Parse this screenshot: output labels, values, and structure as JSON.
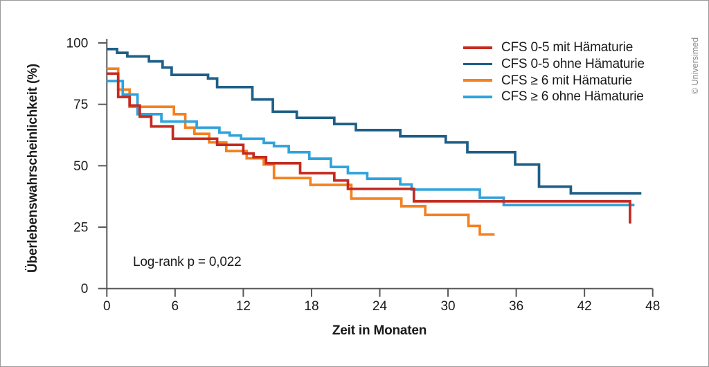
{
  "frame": {
    "copyright": "© Universimed",
    "background": "#ffffff",
    "border_color": "#9a9a9a"
  },
  "chart_data": {
    "type": "line",
    "subtype": "kaplan-meier-step",
    "title": "",
    "xlabel": "Zeit in Monaten",
    "ylabel": "Überlebenswahrscheinlichkeit (%)",
    "annotation": "Log-rank p = 0,022",
    "xlim": [
      0,
      48
    ],
    "ylim": [
      0,
      100
    ],
    "x_ticks": [
      0,
      6,
      12,
      18,
      24,
      30,
      36,
      42,
      48
    ],
    "y_ticks": [
      0,
      25,
      50,
      75,
      100
    ],
    "grid": false,
    "legend_position": "top-right",
    "axis_color": "#57585a",
    "text_color": "#1a1a1a",
    "series": [
      {
        "name": "CFS 0-5 mit Hämaturie",
        "color": "#c52a20",
        "steps": [
          [
            0,
            87.5
          ],
          [
            1,
            78
          ],
          [
            2,
            74.5
          ],
          [
            2.9,
            70
          ],
          [
            3.9,
            66
          ],
          [
            5.8,
            61
          ],
          [
            9.7,
            58.5
          ],
          [
            12,
            55
          ],
          [
            12.9,
            53.5
          ],
          [
            14,
            51
          ],
          [
            17,
            47
          ],
          [
            20,
            44
          ],
          [
            21.2,
            40.6
          ],
          [
            27,
            35.5
          ],
          [
            46,
            26.5
          ]
        ]
      },
      {
        "name": "CFS 0-5 ohne Hämaturie",
        "color": "#1d5f87",
        "steps": [
          [
            0,
            97.5
          ],
          [
            0.9,
            96
          ],
          [
            1.8,
            94.5
          ],
          [
            3.7,
            92.5
          ],
          [
            4.9,
            90
          ],
          [
            5.7,
            87
          ],
          [
            8.9,
            85.5
          ],
          [
            9.7,
            82
          ],
          [
            12.8,
            77
          ],
          [
            14.6,
            72
          ],
          [
            16.7,
            69.5
          ],
          [
            20,
            67
          ],
          [
            21.9,
            64.5
          ],
          [
            25.8,
            62
          ],
          [
            29.8,
            59.5
          ],
          [
            31.7,
            55.5
          ],
          [
            35.9,
            50.5
          ],
          [
            38,
            41.5
          ],
          [
            40.8,
            38.8
          ],
          [
            47,
            38.8
          ]
        ]
      },
      {
        "name": "CFS ≥ 6 mit Hämaturie",
        "color": "#f48120",
        "steps": [
          [
            0,
            89.5
          ],
          [
            1,
            81
          ],
          [
            2,
            74
          ],
          [
            5.9,
            71
          ],
          [
            6.9,
            65.5
          ],
          [
            7.7,
            63
          ],
          [
            9,
            59.5
          ],
          [
            10.5,
            56
          ],
          [
            12.3,
            53
          ],
          [
            13.8,
            50.5
          ],
          [
            14.7,
            45
          ],
          [
            17.9,
            42.2
          ],
          [
            21.5,
            36.6
          ],
          [
            25.9,
            33.5
          ],
          [
            28,
            30
          ],
          [
            31.8,
            25.5
          ],
          [
            32.8,
            22
          ],
          [
            34.1,
            22
          ]
        ]
      },
      {
        "name": "CFS ≥ 6 ohne Hämaturie",
        "color": "#2fa3dc",
        "steps": [
          [
            0,
            84.5
          ],
          [
            1.4,
            79
          ],
          [
            2.7,
            71
          ],
          [
            4.8,
            68
          ],
          [
            7.9,
            65.5
          ],
          [
            9.9,
            63.5
          ],
          [
            10.8,
            62.3
          ],
          [
            11.8,
            61
          ],
          [
            13.8,
            59.3
          ],
          [
            14.7,
            58
          ],
          [
            16,
            55.5
          ],
          [
            17.8,
            52.9
          ],
          [
            19.7,
            49.5
          ],
          [
            21.2,
            47
          ],
          [
            22.9,
            44.7
          ],
          [
            25.8,
            42.4
          ],
          [
            26.8,
            40.3
          ],
          [
            32.8,
            37
          ],
          [
            34.9,
            34
          ],
          [
            46.4,
            34
          ]
        ]
      }
    ],
    "draw_order": [
      1,
      2,
      3,
      0
    ]
  }
}
